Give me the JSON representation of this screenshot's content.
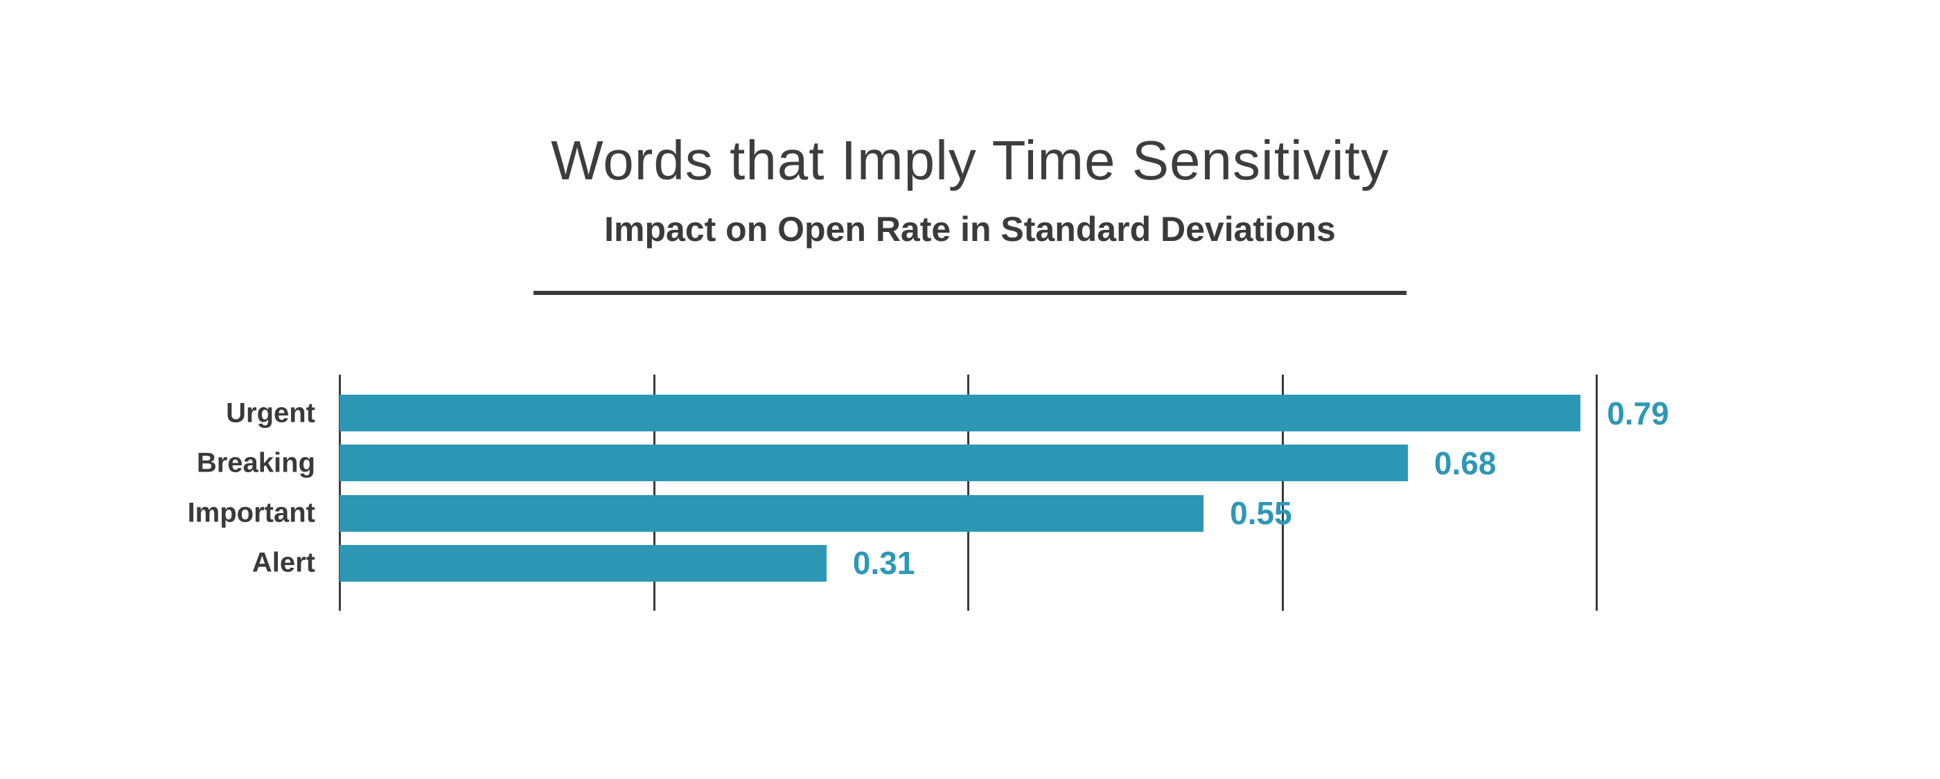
{
  "header": {
    "title": "Words that Imply Time Sensitivity",
    "subtitle": "Impact on Open Rate in Standard Deviations"
  },
  "colors": {
    "bar": "#2d98b6",
    "value_label": "#2d98b6",
    "text_dark": "#3a3a3a",
    "gridline": "#3b3b3b",
    "background": "#ffffff"
  },
  "chart_data": {
    "type": "bar",
    "orientation": "horizontal",
    "title": "Words that Imply Time Sensitivity",
    "subtitle": "Impact on Open Rate in Standard Deviations",
    "categories": [
      "Urgent",
      "Breaking",
      "Important",
      "Alert"
    ],
    "values": [
      0.79,
      0.68,
      0.55,
      0.31
    ],
    "value_labels": [
      "0.79",
      "0.68",
      "0.55",
      "0.31"
    ],
    "xlabel": "",
    "ylabel": "",
    "xlim": [
      0,
      0.8
    ],
    "gridline_values": [
      0,
      0.2,
      0.4,
      0.6,
      0.8
    ],
    "axis_tick_labels": "none",
    "grid": "vertical-only",
    "legend": "none",
    "bar_color": "#2d98b6",
    "label_position": "right-of-bar"
  }
}
